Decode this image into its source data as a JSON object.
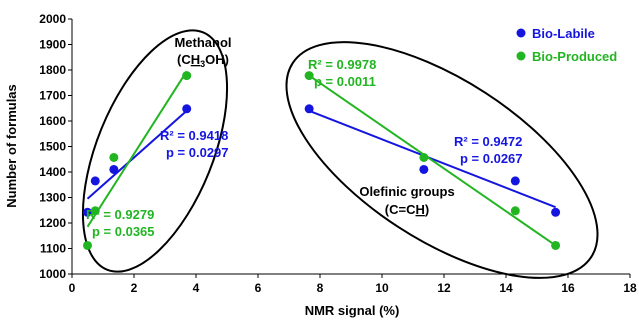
{
  "chart_data": {
    "type": "scatter",
    "xlabel": "NMR signal (%)",
    "ylabel": "Number of formulas",
    "xlim": [
      0,
      18
    ],
    "ylim": [
      1000,
      2000
    ],
    "xticks": [
      0,
      2,
      4,
      6,
      8,
      10,
      12,
      14,
      16,
      18
    ],
    "yticks": [
      1000,
      1100,
      1200,
      1300,
      1400,
      1500,
      1600,
      1700,
      1800,
      1900,
      2000
    ],
    "grid": false,
    "legend_position": "top-right",
    "colors": {
      "bio_labile": "#1515e0",
      "bio_produced": "#22b522"
    },
    "series": [
      {
        "name": "Bio-Labile",
        "color": "#1515e0",
        "points": [
          {
            "x": 0.5,
            "y": 1242
          },
          {
            "x": 0.75,
            "y": 1365
          },
          {
            "x": 1.35,
            "y": 1410
          },
          {
            "x": 3.7,
            "y": 1648
          },
          {
            "x": 7.65,
            "y": 1648
          },
          {
            "x": 11.35,
            "y": 1410
          },
          {
            "x": 14.3,
            "y": 1365
          },
          {
            "x": 15.6,
            "y": 1242
          }
        ]
      },
      {
        "name": "Bio-Produced",
        "color": "#22b522",
        "points": [
          {
            "x": 0.5,
            "y": 1112
          },
          {
            "x": 0.75,
            "y": 1248
          },
          {
            "x": 1.35,
            "y": 1457
          },
          {
            "x": 3.7,
            "y": 1778
          },
          {
            "x": 7.65,
            "y": 1778
          },
          {
            "x": 11.35,
            "y": 1457
          },
          {
            "x": 14.3,
            "y": 1248
          },
          {
            "x": 15.6,
            "y": 1112
          }
        ]
      }
    ],
    "trendlines": [
      {
        "series": "Bio-Labile",
        "color": "#1515e0",
        "from": [
          0.5,
          1295
        ],
        "to": [
          3.7,
          1640
        ]
      },
      {
        "series": "Bio-Produced",
        "color": "#22b522",
        "from": [
          0.5,
          1185
        ],
        "to": [
          3.7,
          1795
        ]
      },
      {
        "series": "Bio-Labile",
        "color": "#1515e0",
        "from": [
          7.65,
          1640
        ],
        "to": [
          15.6,
          1262
        ]
      },
      {
        "series": "Bio-Produced",
        "color": "#22b522",
        "from": [
          7.65,
          1778
        ],
        "to": [
          15.6,
          1112
        ]
      }
    ],
    "groups": [
      {
        "label_line1": "Methanol",
        "label_line2_pre": "(C",
        "label_line2_u": "H",
        "label_line2_sub": "3",
        "label_line2_post": "OH)"
      },
      {
        "label_line1": "Olefinic groups",
        "label_line2_pre": "(C=C",
        "label_line2_u": "H",
        "label_line2_post": ")"
      }
    ],
    "annotations": [
      {
        "series": "Bio-Labile",
        "color": "#1515e0",
        "r2": "R² = 0.9418",
        "p": "p = 0.0297"
      },
      {
        "series": "Bio-Produced",
        "color": "#22b522",
        "r2": "R² = 0.9279",
        "p": "p = 0.0365"
      },
      {
        "series": "Bio-Labile",
        "color": "#1515e0",
        "r2": "R² = 0.9472",
        "p": "p = 0.0267"
      },
      {
        "series": "Bio-Produced",
        "color": "#22b522",
        "r2": "R² = 0.9978",
        "p": "p = 0.0011"
      }
    ]
  }
}
